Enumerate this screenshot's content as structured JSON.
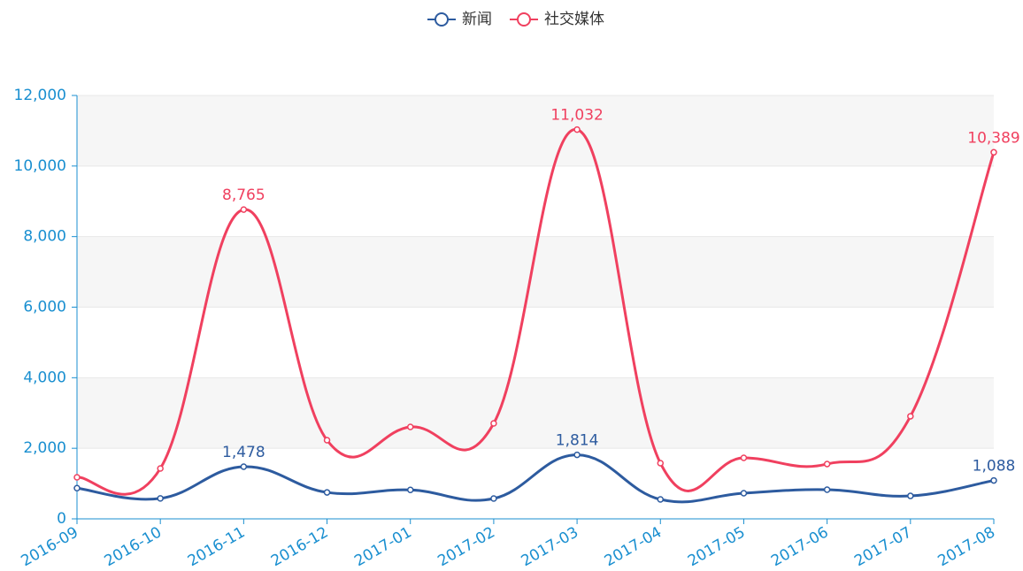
{
  "chart_data": {
    "type": "line",
    "categories": [
      "2016-09",
      "2016-10",
      "2016-11",
      "2016-12",
      "2017-01",
      "2017-02",
      "2017-03",
      "2017-04",
      "2017-05",
      "2017-06",
      "2017-07",
      "2017-08"
    ],
    "series": [
      {
        "name": "新闻",
        "color": "#2d5b9f",
        "values": [
          870,
          580,
          1478,
          750,
          820,
          576,
          1814,
          551,
          727,
          827,
          650,
          1088
        ],
        "value_labels": [
          null,
          null,
          "1,478",
          null,
          null,
          null,
          "1,814",
          null,
          null,
          null,
          null,
          "1,088"
        ]
      },
      {
        "name": "社交媒体",
        "color": "#f0405f",
        "values": [
          1178,
          1428,
          8765,
          2230,
          2606,
          2706,
          11032,
          1579,
          1729,
          1554,
          2907,
          10389
        ],
        "value_labels": [
          null,
          null,
          "8,765",
          null,
          null,
          null,
          "11,032",
          null,
          null,
          null,
          null,
          "10,389"
        ]
      }
    ],
    "ylim": [
      0,
      12000
    ],
    "yticks": [
      0,
      {
        "value": 2000,
        "label": "2,000"
      },
      {
        "value": 4000,
        "label": "4,000"
      },
      {
        "value": 6000,
        "label": "6,000"
      },
      {
        "value": 8000,
        "label": "8,000"
      },
      {
        "value": 10000,
        "label": "10,000"
      },
      {
        "value": 12000,
        "label": "12,000"
      }
    ],
    "grid": true,
    "legend": "top"
  }
}
